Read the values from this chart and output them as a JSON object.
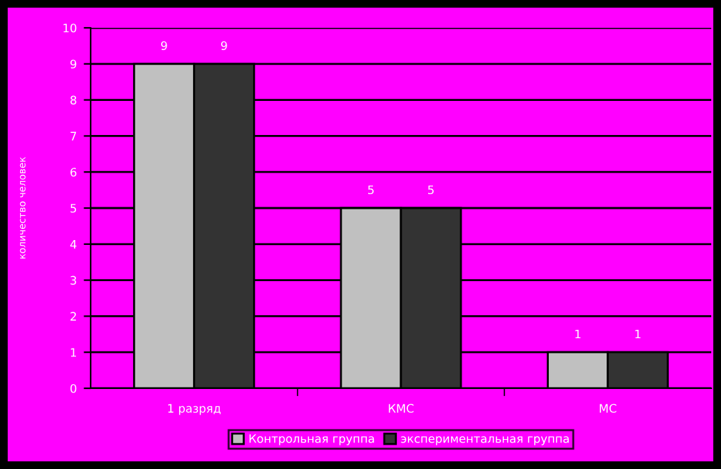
{
  "chart_data": {
    "type": "bar",
    "categories": [
      "1 разряд",
      "КМС",
      "МС"
    ],
    "series": [
      {
        "name": "Контрольная группа",
        "color": "#c0c0c0",
        "values": [
          9,
          5,
          1
        ]
      },
      {
        "name": "экспериментальная группа",
        "color": "#333333",
        "values": [
          9,
          5,
          1
        ]
      }
    ],
    "ylabel": "количество человек",
    "ylim": [
      0,
      10
    ],
    "yticks": [
      0,
      1,
      2,
      3,
      4,
      5,
      6,
      7,
      8,
      9,
      10
    ],
    "grid": "y",
    "legend": "bottom",
    "data_labels": true
  }
}
